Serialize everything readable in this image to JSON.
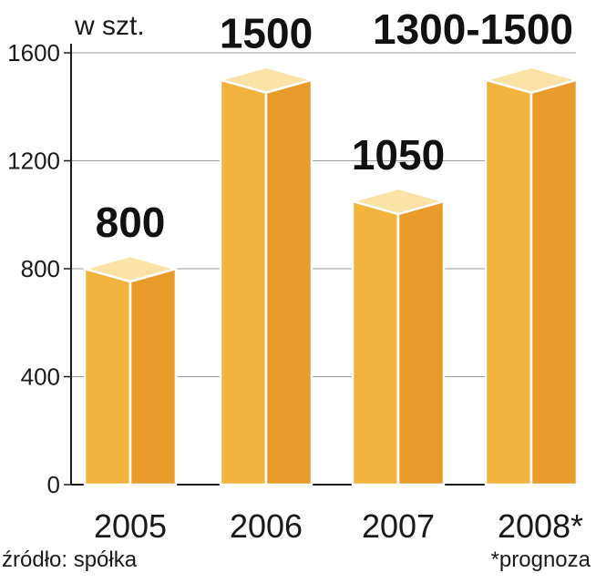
{
  "chart_data": {
    "type": "bar",
    "unit_label": "w szt.",
    "categories": [
      "2005",
      "2006",
      "2007",
      "2008*"
    ],
    "values": [
      800,
      1500,
      1050,
      1500
    ],
    "data_labels": [
      "800",
      "1500",
      "1050",
      "1300-1500"
    ],
    "ylim": [
      0,
      1600
    ],
    "yticks": [
      0,
      400,
      800,
      1200,
      1600
    ],
    "ytick_labels": [
      "0",
      "400",
      "800",
      "1200",
      "1600"
    ],
    "grid": true,
    "colors": {
      "front": "#f3b33f",
      "side": "#e89a2a",
      "top": "#fbe3a8",
      "edge": "#ffffff",
      "grid": "#9a9a9a"
    }
  },
  "source_text": "źródło: spółka",
  "footnote": "*prognoza"
}
